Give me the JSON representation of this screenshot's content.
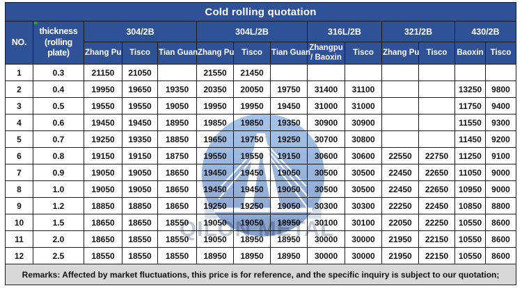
{
  "title": "Cold rolling quotation",
  "header": {
    "no": "NO.",
    "thickness": "thickness (rolling plate)",
    "groups": [
      {
        "label": "304/2B",
        "cols": [
          "Zhang Pu",
          "Tisco",
          "Tian Guan"
        ]
      },
      {
        "label": "304L/2B",
        "cols": [
          "Zhang Pu",
          "Tisco",
          "Tian Guan"
        ]
      },
      {
        "label": "316L/2B",
        "cols": [
          "Zhangpu / Baoxin",
          "Tisco"
        ]
      },
      {
        "label": "321/2B",
        "cols": [
          "Zhang Pu",
          "Tisco"
        ]
      },
      {
        "label": "430/2B",
        "cols": [
          "Baoxin",
          "Tisco"
        ]
      }
    ]
  },
  "rows": [
    {
      "no": "1",
      "thickness": "0.3",
      "values": [
        "21150",
        "21050",
        "",
        "21550",
        "21450",
        "",
        "",
        "",
        "",
        "",
        "",
        ""
      ]
    },
    {
      "no": "2",
      "thickness": "0.4",
      "values": [
        "19950",
        "19650",
        "19350",
        "20350",
        "20050",
        "19750",
        "31400",
        "31100",
        "",
        "",
        "13250",
        "9800"
      ]
    },
    {
      "no": "3",
      "thickness": "0.5",
      "values": [
        "19550",
        "19550",
        "19050",
        "19950",
        "19950",
        "19450",
        "31000",
        "31000",
        "",
        "",
        "11750",
        "9400"
      ]
    },
    {
      "no": "4",
      "thickness": "0.6",
      "values": [
        "19450",
        "19450",
        "18950",
        "19850",
        "19850",
        "19350",
        "30900",
        "30900",
        "",
        "",
        "11550",
        "9300"
      ]
    },
    {
      "no": "5",
      "thickness": "0.7",
      "values": [
        "19250",
        "19350",
        "18850",
        "19650",
        "19750",
        "19250",
        "30700",
        "30800",
        "",
        "",
        "11450",
        "9200"
      ]
    },
    {
      "no": "6",
      "thickness": "0.8",
      "values": [
        "19150",
        "19150",
        "18750",
        "19550",
        "19550",
        "19150",
        "30600",
        "30600",
        "22550",
        "22750",
        "11250",
        "9100"
      ]
    },
    {
      "no": "7",
      "thickness": "0.9",
      "values": [
        "19050",
        "19050",
        "18650",
        "19450",
        "19450",
        "19050",
        "30500",
        "30500",
        "22450",
        "22650",
        "11050",
        "9000"
      ]
    },
    {
      "no": "8",
      "thickness": "1.0",
      "values": [
        "19050",
        "19050",
        "18650",
        "19450",
        "19450",
        "19050",
        "30500",
        "30500",
        "22450",
        "22650",
        "10950",
        "9000"
      ]
    },
    {
      "no": "9",
      "thickness": "1.2",
      "values": [
        "18850",
        "18850",
        "18650",
        "19250",
        "19250",
        "19050",
        "30300",
        "30300",
        "22250",
        "22450",
        "10850",
        "8800"
      ]
    },
    {
      "no": "10",
      "thickness": "1.5",
      "values": [
        "18650",
        "18650",
        "18550",
        "19050",
        "19050",
        "18950",
        "30100",
        "30100",
        "22050",
        "22250",
        "10550",
        "8600"
      ]
    },
    {
      "no": "11",
      "thickness": "2.0",
      "values": [
        "18650",
        "18550",
        "18550",
        "19050",
        "18950",
        "18950",
        "30000",
        "30000",
        "21950",
        "22150",
        "10550",
        "8600"
      ]
    },
    {
      "no": "12",
      "thickness": "2.5",
      "values": [
        "18550",
        "18550",
        "18550",
        "18950",
        "18950",
        "18950",
        "30000",
        "30000",
        "21950",
        "22150",
        "10550",
        "8600"
      ]
    }
  ],
  "remarks": "Remarks: Affected by market fluctuations, this price is for reference, and the specific inquiry is subject to our quotation;",
  "watermark": {
    "text": "QILON METAL"
  },
  "colors": {
    "header_bg": "#2f5195",
    "header_text": "#ffffff",
    "remarks_bg": "#d8d8d8",
    "border": "#1a1a1a",
    "watermark_circle_light": "#5b93d6",
    "watermark_circle_dark": "#2b57a5",
    "watermark_text": "#98a6bd",
    "note_marker_green": "#1fa12e"
  }
}
